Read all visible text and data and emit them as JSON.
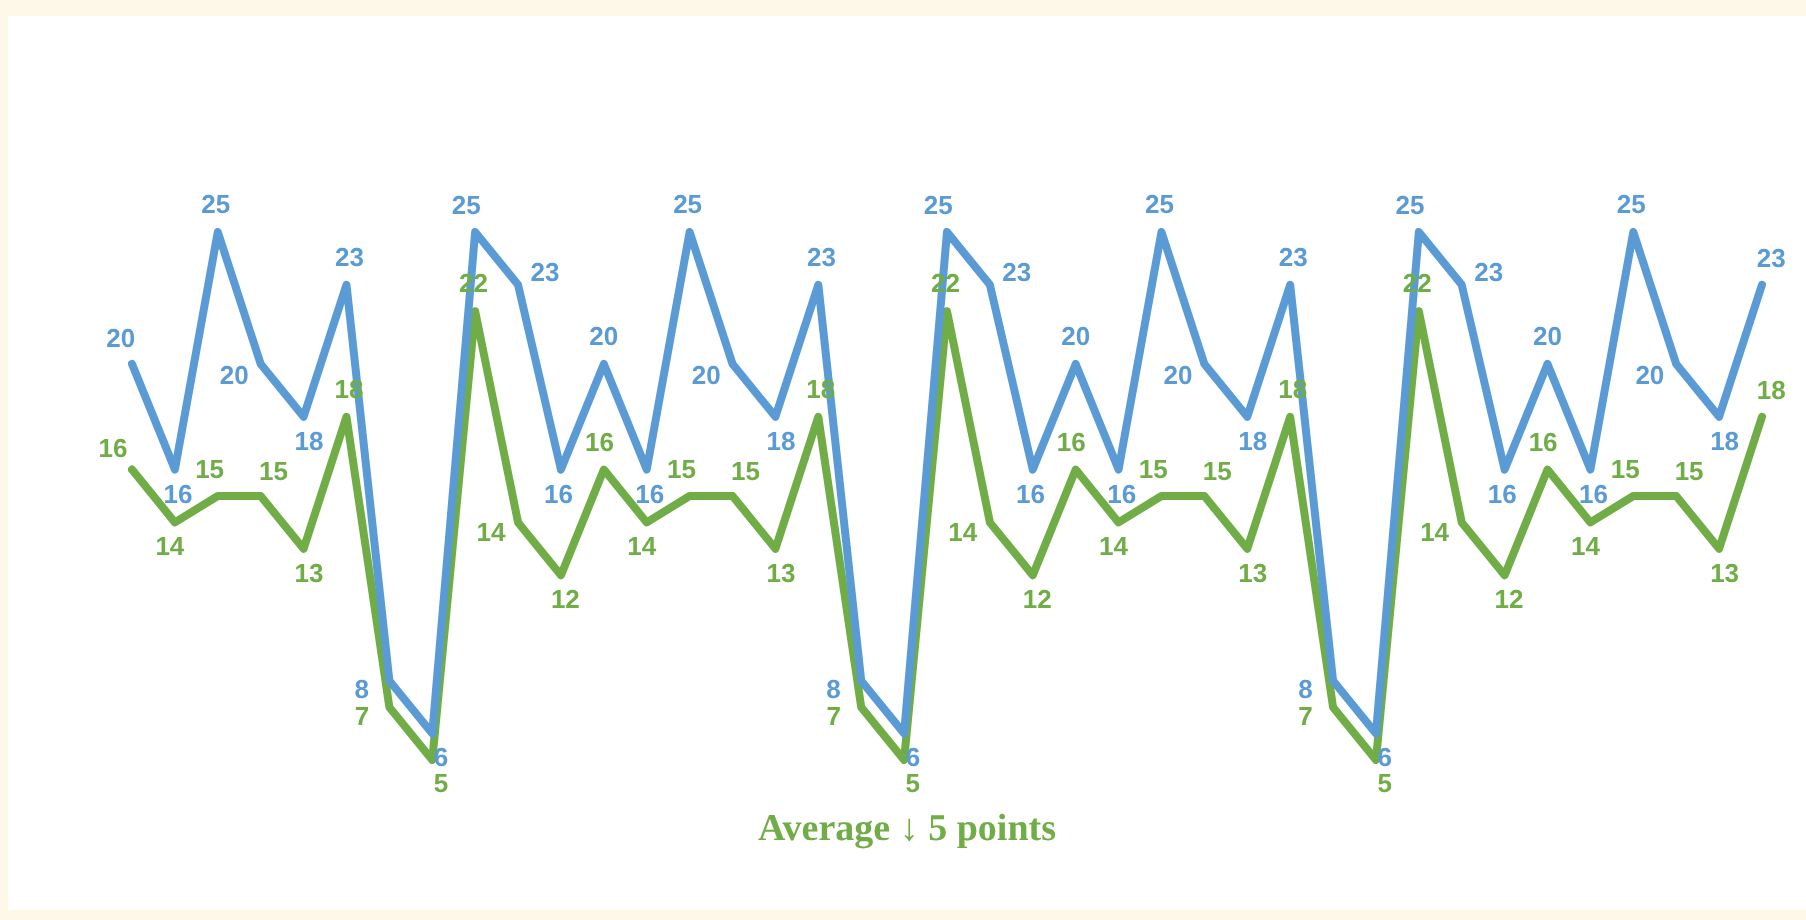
{
  "chart_data": {
    "type": "line",
    "categories": [
      null,
      null,
      null,
      null,
      null,
      null,
      null,
      null,
      null,
      null,
      null,
      null,
      null,
      null,
      null,
      null,
      null,
      null,
      null,
      null,
      null,
      null,
      null,
      null,
      null,
      null,
      null,
      null,
      null,
      null,
      null,
      null,
      null,
      null,
      null,
      null,
      null,
      null,
      null
    ],
    "series": [
      {
        "color": "#5b9bd5",
        "values": [
          20,
          16,
          25,
          20,
          18,
          23,
          8,
          6,
          25,
          23,
          16,
          20,
          16,
          25,
          20,
          18,
          23,
          8,
          6,
          25,
          23,
          16,
          20,
          16,
          25,
          20,
          18,
          23,
          8,
          6,
          25,
          23,
          16,
          20,
          16,
          25,
          20,
          18,
          23
        ]
      },
      {
        "color": "#70ad47",
        "values": [
          16,
          14,
          15,
          15,
          13,
          18,
          7,
          5,
          22,
          14,
          12,
          16,
          14,
          15,
          15,
          13,
          18,
          7,
          5,
          22,
          14,
          12,
          16,
          14,
          15,
          15,
          13,
          18,
          7,
          5,
          22,
          14,
          12,
          16,
          14,
          15,
          15,
          13,
          18
        ]
      }
    ],
    "data_labels": true,
    "tick_labels": false,
    "marker": "none",
    "annotations": [
      "Average ↓ 5 points"
    ]
  }
}
